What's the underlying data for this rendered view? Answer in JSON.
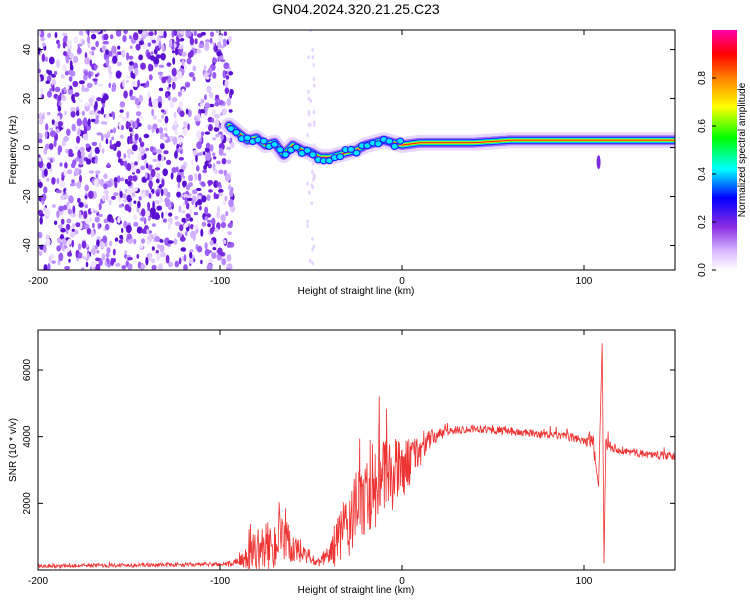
{
  "title": "GN04.2024.320.21.25.C23",
  "chart_data": [
    {
      "type": "heatmap",
      "xlabel": "Height of straight line (km)",
      "ylabel": "Frequency (Hz)",
      "xlim": [
        -200,
        150
      ],
      "ylim": [
        -50,
        48
      ],
      "x_ticks": [
        -200,
        -100,
        0,
        100
      ],
      "y_ticks": [
        -40,
        -20,
        0,
        20,
        40
      ],
      "colorbar": {
        "label": "Normalized spectral amplitude",
        "range": [
          0,
          1
        ],
        "ticks": [
          "0.0",
          "0.2",
          "0.4",
          "0.6",
          "0.8"
        ]
      },
      "ridge": {
        "x": [
          -95,
          -90,
          -85,
          -80,
          -75,
          -70,
          -65,
          -60,
          -55,
          -50,
          -45,
          -40,
          -35,
          -30,
          -25,
          -20,
          -15,
          -10,
          -5,
          0,
          10,
          20,
          40,
          60,
          80,
          100,
          110,
          120,
          150
        ],
        "y": [
          9,
          6,
          3,
          4,
          1,
          2,
          -3,
          1,
          -1,
          -2,
          -4,
          -4,
          -3,
          -2,
          -1,
          1,
          2,
          3,
          2,
          1,
          2,
          2,
          2,
          3,
          3,
          3,
          3,
          3,
          3
        ]
      },
      "noise_region_x": [
        -200,
        -93
      ]
    },
    {
      "type": "line",
      "xlabel": "Height of straight line (km)",
      "ylabel": "SNR (10 * v/v)",
      "xlim": [
        -200,
        150
      ],
      "ylim": [
        0,
        7200
      ],
      "x_ticks": [
        -200,
        -100,
        0,
        100
      ],
      "y_ticks": [
        2000,
        4000,
        6000
      ],
      "color": "#ee3333",
      "series": [
        {
          "x": [
            -200,
            -180,
            -160,
            -140,
            -120,
            -100,
            -90,
            -85,
            -80,
            -75,
            -70,
            -65,
            -60,
            -55,
            -50,
            -45,
            -40,
            -35,
            -30,
            -25,
            -20,
            -15,
            -10,
            -5,
            0,
            5,
            10,
            15,
            20,
            25,
            30,
            40,
            50,
            60,
            70,
            80,
            90,
            100,
            105,
            108,
            110,
            111,
            112,
            113,
            115,
            120,
            130,
            140,
            150
          ],
          "y": [
            120,
            130,
            140,
            150,
            160,
            170,
            200,
            350,
            600,
            700,
            800,
            850,
            700,
            450,
            300,
            200,
            500,
            900,
            1300,
            1800,
            2200,
            2500,
            2700,
            2900,
            3000,
            3300,
            3600,
            3900,
            4050,
            4150,
            4200,
            4250,
            4200,
            4150,
            4100,
            4050,
            4000,
            3900,
            3800,
            2500,
            6800,
            200,
            3900,
            3800,
            3700,
            3600,
            3500,
            3450,
            3400
          ],
          "noise": [
            60,
            60,
            60,
            60,
            60,
            60,
            120,
            400,
            600,
            700,
            800,
            700,
            600,
            300,
            200,
            150,
            400,
            800,
            1000,
            1200,
            1300,
            1300,
            1200,
            1100,
            900,
            700,
            500,
            300,
            200,
            150,
            120,
            120,
            120,
            120,
            120,
            120,
            120,
            150,
            300,
            0,
            0,
            0,
            0,
            300,
            150,
            120,
            120,
            120,
            120
          ]
        }
      ]
    }
  ]
}
